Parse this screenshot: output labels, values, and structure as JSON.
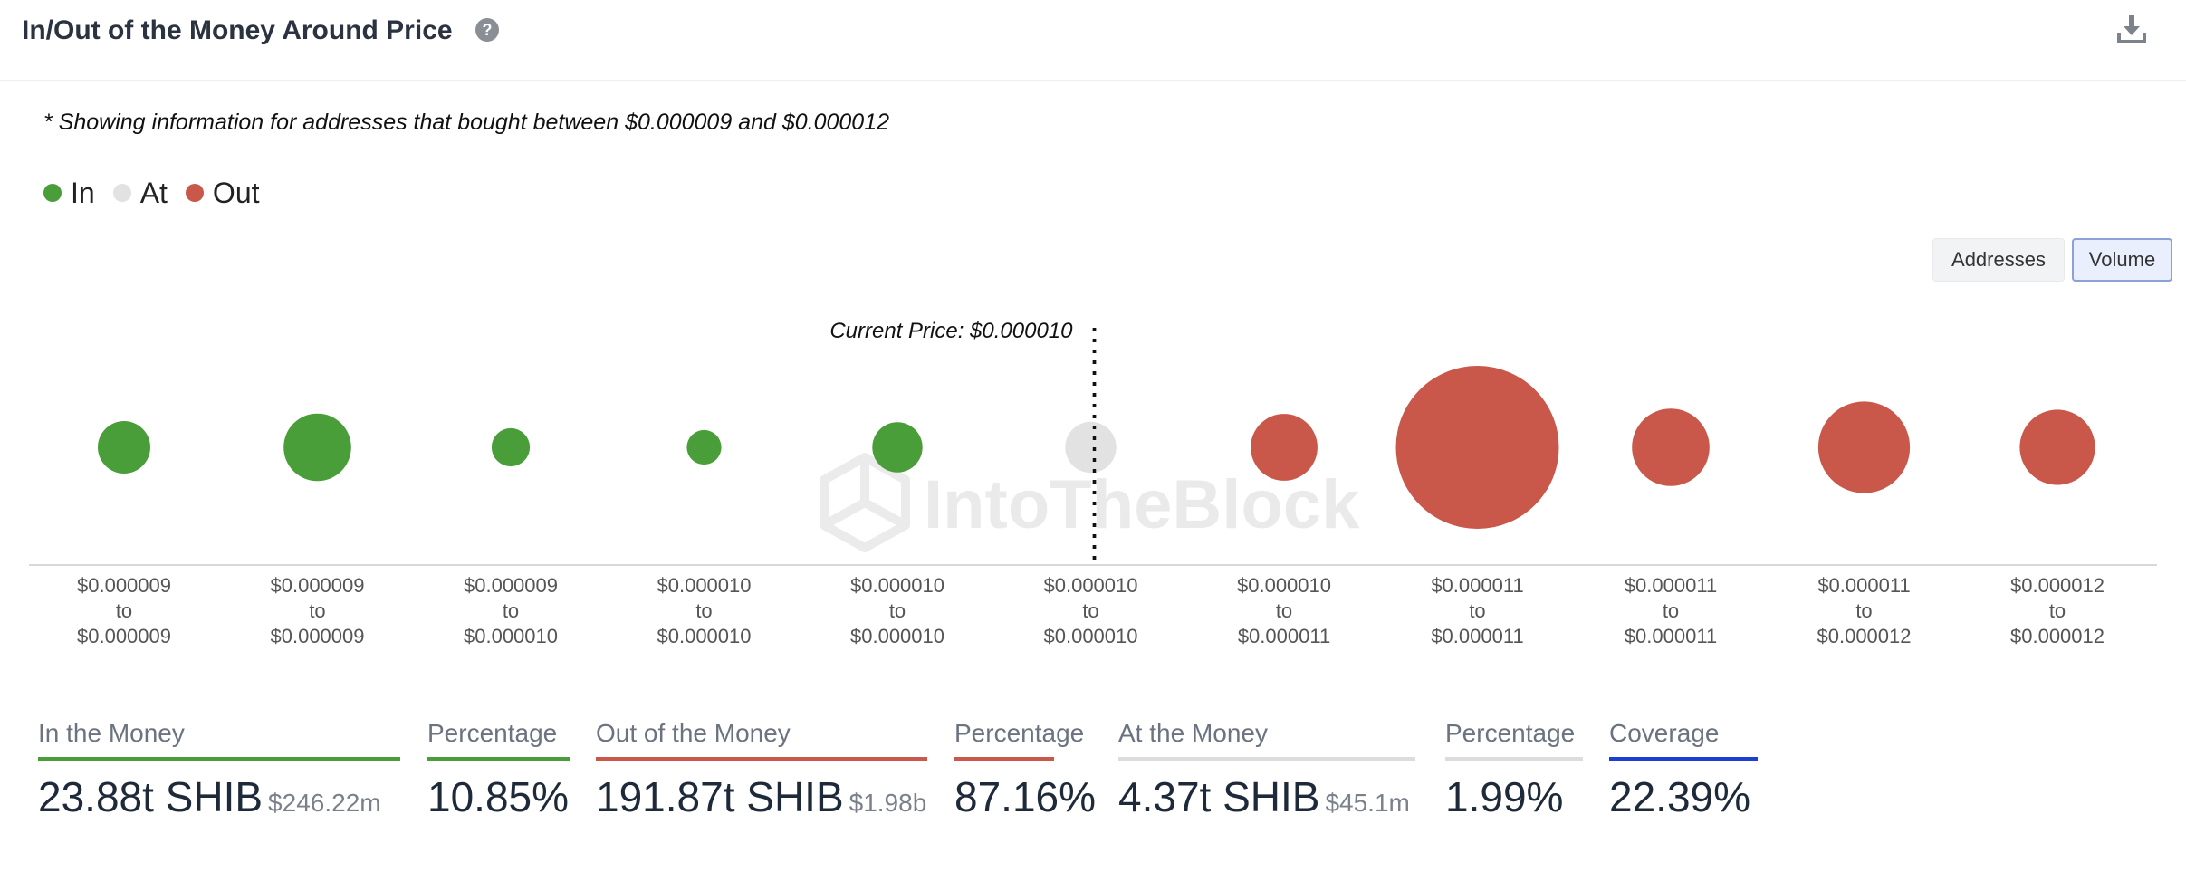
{
  "header": {
    "title": "In/Out of the Money Around Price"
  },
  "note": "* Showing information for addresses that bought between $0.000009 and $0.000012",
  "legend": [
    {
      "label": "In",
      "color": "#4a9e3a"
    },
    {
      "label": "At",
      "color": "#e2e2e2"
    },
    {
      "label": "Out",
      "color": "#c9574a"
    }
  ],
  "toggle": {
    "addresses": "Addresses",
    "volume": "Volume",
    "selected": "Volume"
  },
  "current_price": "Current Price: $0.000010",
  "watermark": "IntoTheBlock",
  "chart_data": {
    "type": "bubble",
    "categories": [
      {
        "low": "$0.000009",
        "high": "$0.000009"
      },
      {
        "low": "$0.000009",
        "high": "$0.000009"
      },
      {
        "low": "$0.000009",
        "high": "$0.000010"
      },
      {
        "low": "$0.000010",
        "high": "$0.000010"
      },
      {
        "low": "$0.000010",
        "high": "$0.000010"
      },
      {
        "low": "$0.000010",
        "high": "$0.000010"
      },
      {
        "low": "$0.000010",
        "high": "$0.000011"
      },
      {
        "low": "$0.000011",
        "high": "$0.000011"
      },
      {
        "low": "$0.000011",
        "high": "$0.000011"
      },
      {
        "low": "$0.000011",
        "high": "$0.000012"
      },
      {
        "low": "$0.000012",
        "high": "$0.000012"
      }
    ],
    "status": [
      "in",
      "in",
      "in",
      "in",
      "in",
      "at",
      "out",
      "out",
      "out",
      "out",
      "out"
    ],
    "relative_volume": [
      0.104,
      0.172,
      0.055,
      0.045,
      0.095,
      0.098,
      0.168,
      1.0,
      0.226,
      0.316,
      0.214
    ],
    "range_connector": "to",
    "current_price_index": 5
  },
  "stats": [
    {
      "label": "In the Money",
      "value": "23.88t SHIB",
      "sub": "$246.22m",
      "color": "#4a9e3a"
    },
    {
      "label": "Percentage",
      "value": "10.85%",
      "sub": "",
      "color": "#4a9e3a"
    },
    {
      "label": "Out of the Money",
      "value": "191.87t SHIB",
      "sub": "$1.98b",
      "color": "#c9574a"
    },
    {
      "label": "Percentage",
      "value": "87.16%",
      "sub": "",
      "color": "#c9574a"
    },
    {
      "label": "At the Money",
      "value": "4.37t SHIB",
      "sub": "$45.1m",
      "color": "#dcdcdc"
    },
    {
      "label": "Percentage",
      "value": "1.99%",
      "sub": "",
      "color": "#dcdcdc"
    },
    {
      "label": "Coverage",
      "value": "22.39%",
      "sub": "",
      "color": "#1b3fd0"
    }
  ]
}
